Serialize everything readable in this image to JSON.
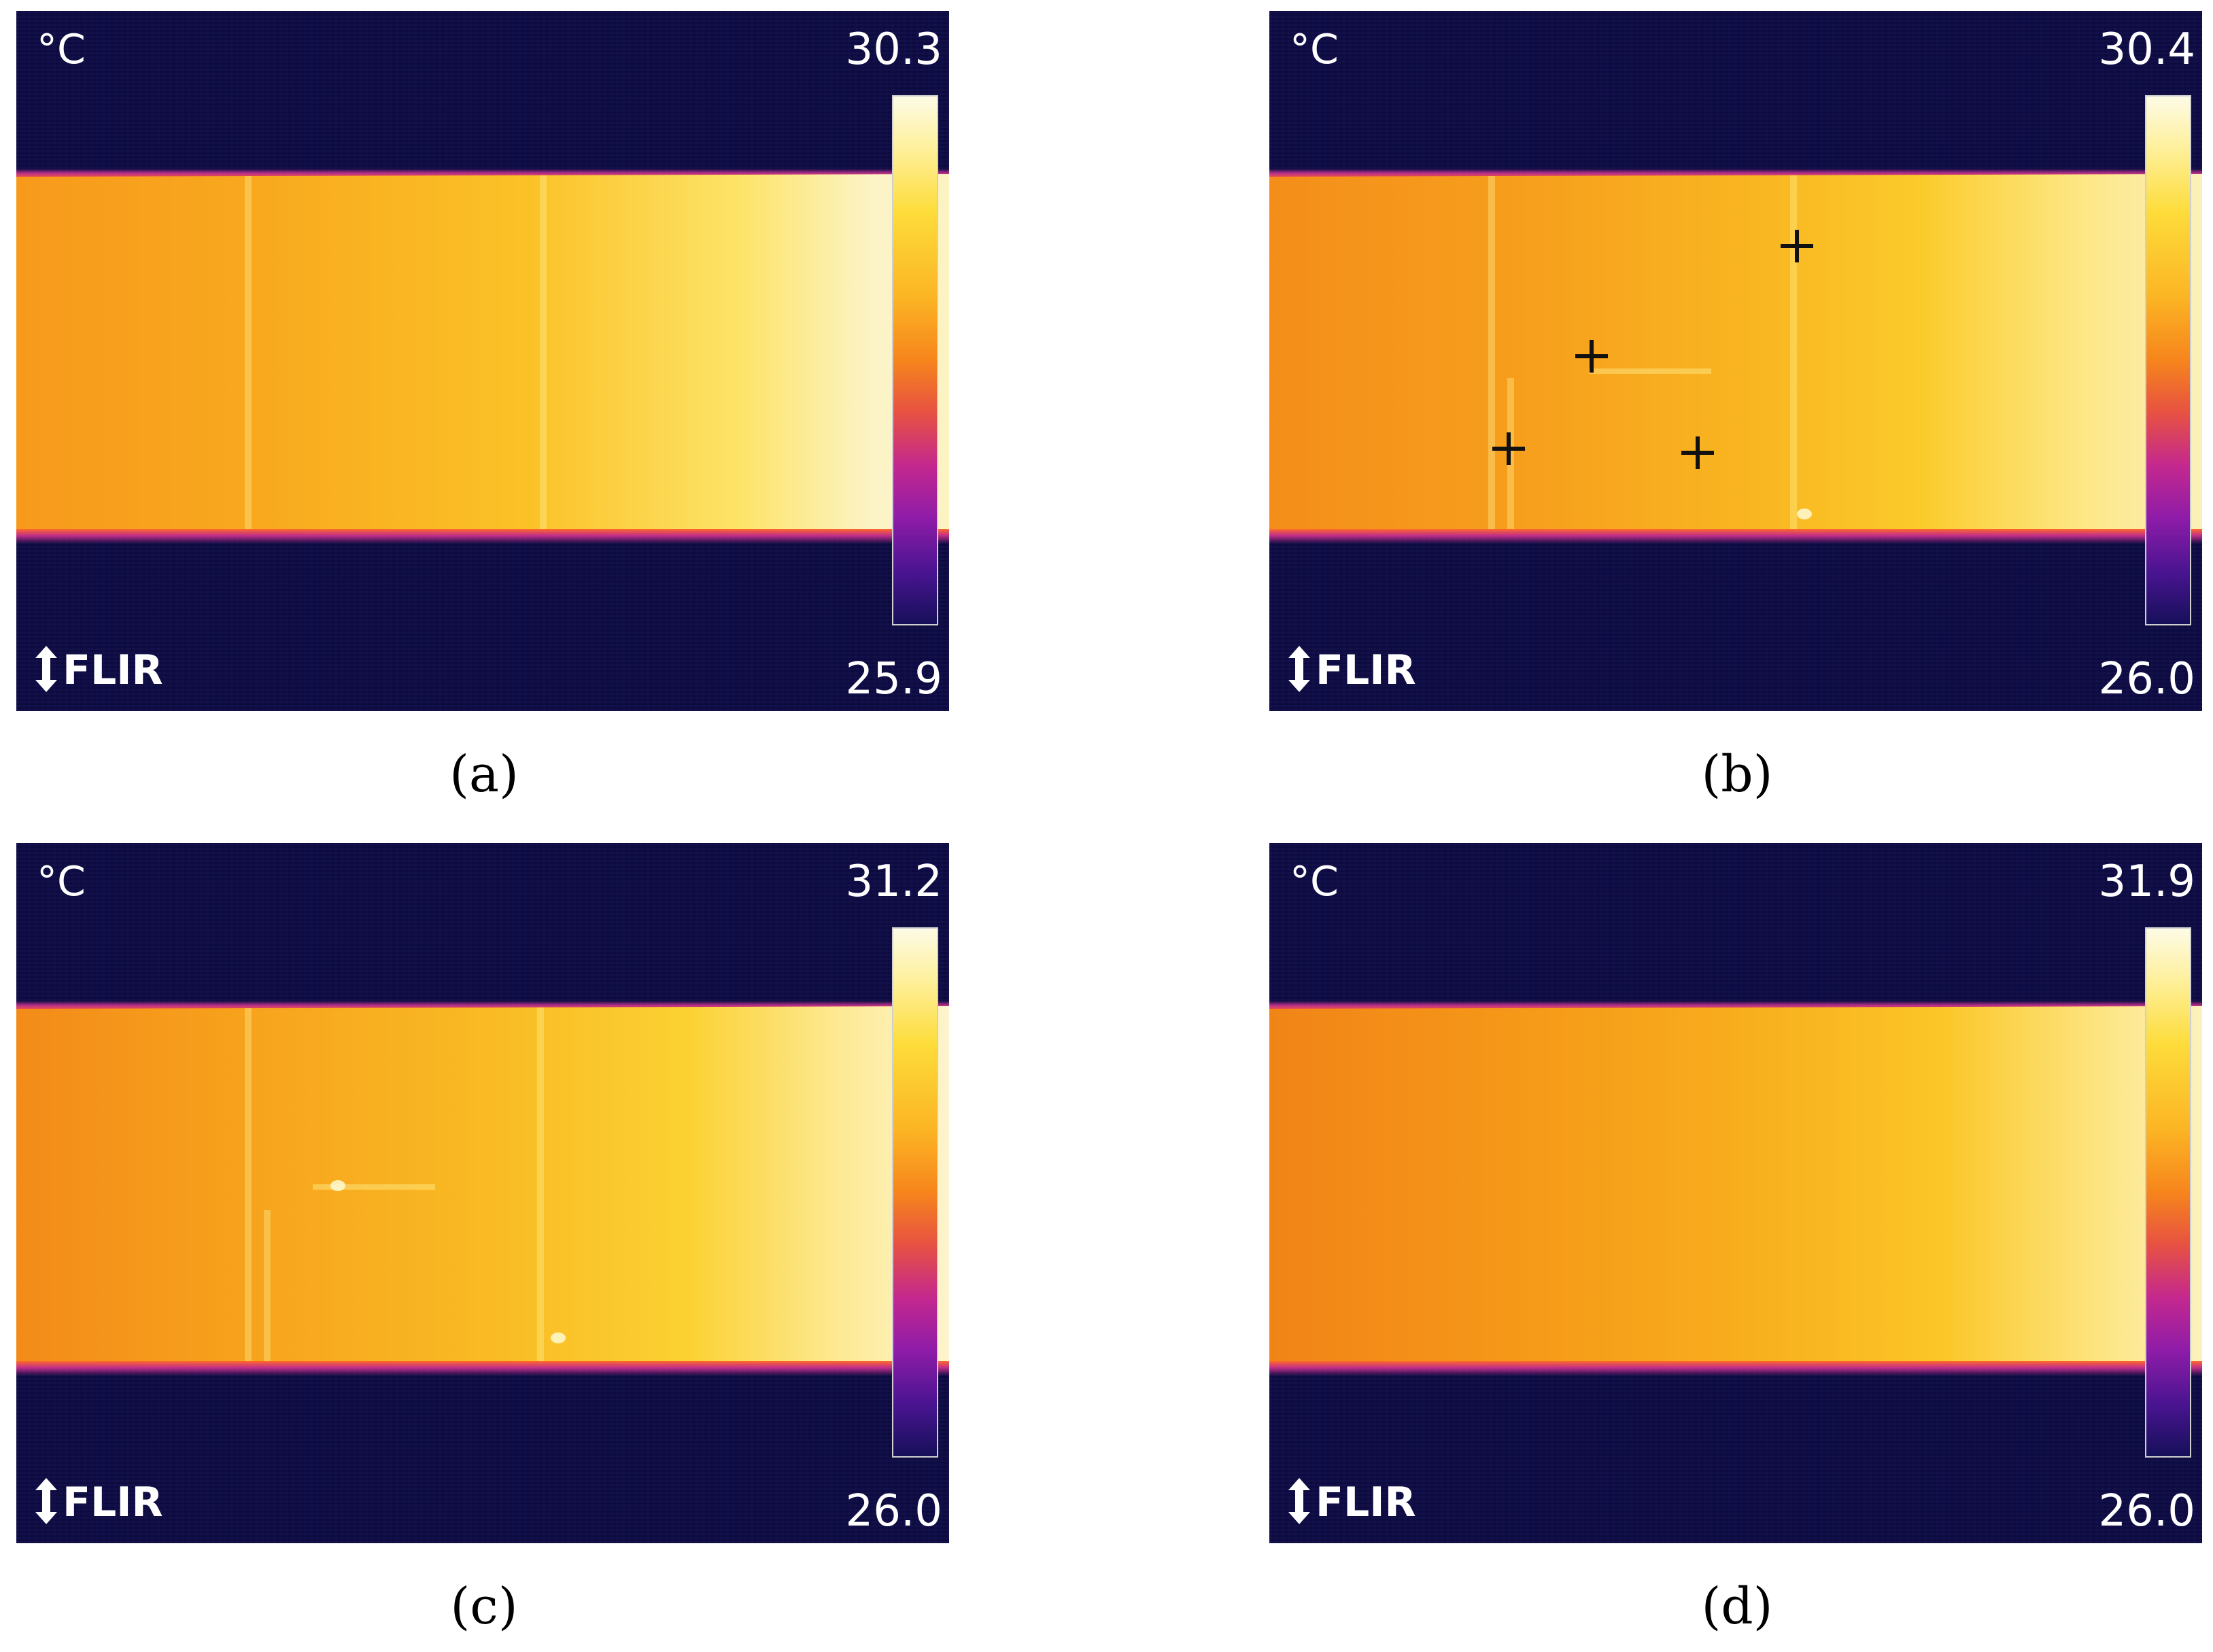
{
  "panels": {
    "a": {
      "unit": "°C",
      "max": "30.3",
      "min": "25.9",
      "brand": "FLIR",
      "caption": "(a)"
    },
    "b": {
      "unit": "°C",
      "max": "30.4",
      "min": "26.0",
      "brand": "FLIR",
      "caption": "(b)"
    },
    "c": {
      "unit": "°C",
      "max": "31.2",
      "min": "26.0",
      "brand": "FLIR",
      "caption": "(c)"
    },
    "d": {
      "unit": "°C",
      "max": "31.9",
      "min": "26.0",
      "brand": "FLIR",
      "caption": "(d)"
    }
  },
  "colors": {
    "background": "#0c0a42",
    "hot_band_start": "#f79a1c",
    "hot_band_end": "#fbf3c2",
    "marker": "#111111",
    "text": "#ffffff"
  }
}
